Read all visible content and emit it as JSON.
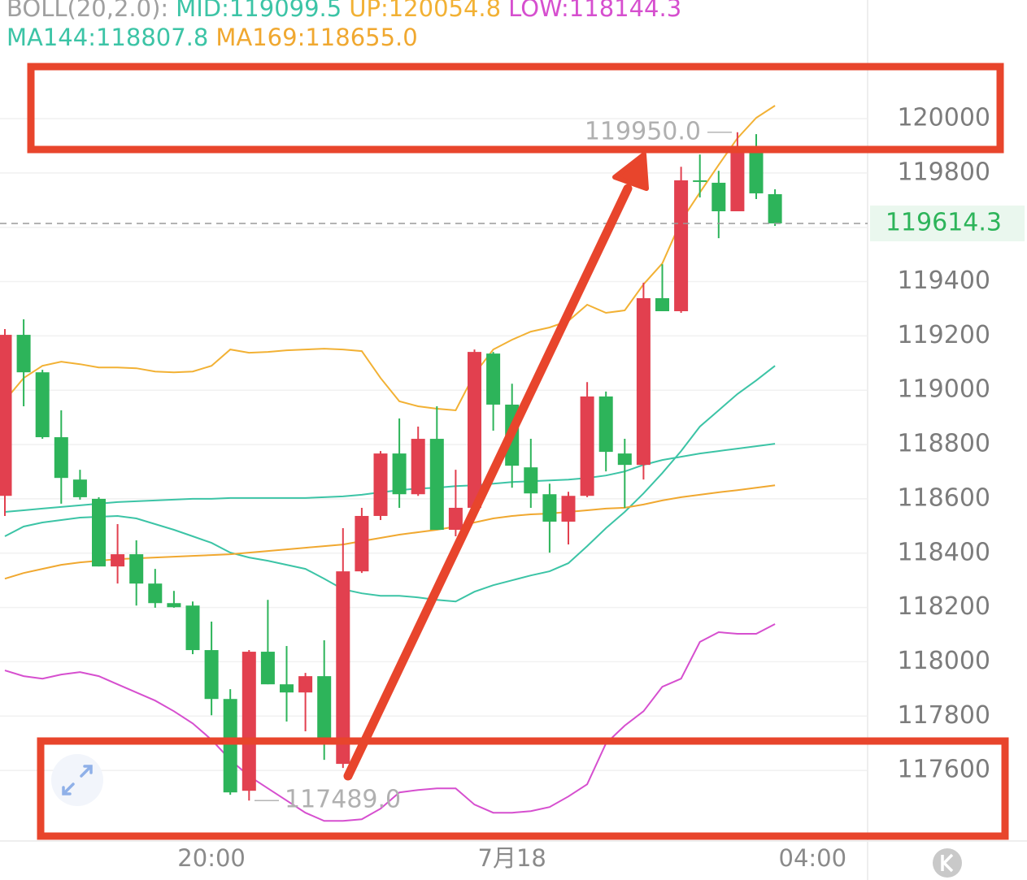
{
  "chart_data": {
    "type": "candlestick",
    "indicators": [
      [
        {
          "text": "BOLL(20,2.0):",
          "color": "#a0a0a0"
        },
        {
          "text": "MID:119099.5",
          "color": "#3cc4a6"
        },
        {
          "text": "UP:120054.8",
          "color": "#f2b134"
        },
        {
          "text": "LOW:118144.3",
          "color": "#d64fcf"
        }
      ],
      [
        {
          "text": "MA144:118807.8",
          "color": "#3cc4a6"
        },
        {
          "text": "MA169:118655.0",
          "color": "#f0a830"
        }
      ]
    ],
    "categories": [
      null,
      null,
      null,
      null,
      null,
      null,
      null,
      null,
      null,
      null,
      null,
      "20:00",
      null,
      null,
      null,
      null,
      null,
      null,
      null,
      null,
      null,
      null,
      null,
      null,
      null,
      null,
      null,
      "7月18",
      null,
      null,
      null,
      null,
      null,
      null,
      null,
      null,
      null,
      null,
      null,
      null,
      null,
      null,
      null,
      "04:00"
    ],
    "open": [
      118611,
      119204,
      119066,
      118827,
      118671,
      118600,
      118351,
      118396,
      118288,
      118216,
      118207,
      118043,
      117863,
      117525,
      118037,
      117917,
      117887,
      117947,
      117624,
      118333,
      118537,
      118767,
      118617,
      118821,
      118486,
      118567,
      119135,
      118947,
      118716,
      118617,
      118516,
      118611,
      118977,
      118767,
      118725,
      119339,
      119291,
      119773,
      119764,
      119659,
      119898,
      119722,
      null,
      null
    ],
    "high": [
      119225,
      119261,
      119075,
      118926,
      118707,
      118606,
      118507,
      118447,
      118342,
      118261,
      118222,
      118148,
      117899,
      118043,
      118228,
      118058,
      117959,
      118079,
      118492,
      118567,
      118776,
      118896,
      118866,
      118941,
      118707,
      119150,
      119141,
      119024,
      118821,
      118656,
      118626,
      119030,
      118995,
      118821,
      119396,
      119464,
      119823,
      119868,
      119808,
      119950,
      119943,
      119740,
      null,
      null
    ],
    "low": [
      118537,
      118941,
      118821,
      118582,
      118597,
      118351,
      118288,
      118207,
      118199,
      118199,
      118028,
      117803,
      117510,
      117489,
      117917,
      117780,
      117744,
      117639,
      117609,
      118327,
      118522,
      118567,
      118611,
      118486,
      118462,
      118558,
      118851,
      118641,
      118567,
      118402,
      118432,
      118606,
      118701,
      118567,
      118671,
      119291,
      119285,
      119710,
      119560,
      119659,
      119704,
      119605,
      null,
      null
    ],
    "close": [
      119204,
      119066,
      118827,
      118677,
      118606,
      118351,
      118396,
      118288,
      118216,
      118201,
      118043,
      117863,
      117519,
      118037,
      117917,
      117887,
      117947,
      117708,
      118333,
      118537,
      118767,
      118617,
      118821,
      118486,
      118567,
      119141,
      118947,
      118722,
      118620,
      118516,
      118611,
      118977,
      118773,
      118725,
      119339,
      119291,
      119773,
      119767,
      119659,
      119898,
      119725,
      119614.3,
      null,
      null
    ],
    "up_color": "#e2404f",
    "down_color": "#2db45a",
    "lines": [
      {
        "color": "#f2b134",
        "values": [
          118962,
          119045,
          119090,
          119105,
          119096,
          119084,
          119084,
          119081,
          119069,
          119066,
          119069,
          119090,
          119150,
          119138,
          119141,
          119147,
          119150,
          119153,
          119150,
          119144,
          119045,
          118959,
          118941,
          118932,
          118926,
          119060,
          119150,
          119186,
          119216,
          119231,
          119255,
          119315,
          119285,
          119294,
          119390,
          119467,
          119623,
          119728,
          119830,
          119928,
          120003,
          120048,
          null,
          null
        ]
      },
      {
        "color": "#3cc4a6",
        "values": [
          118462,
          118498,
          118513,
          118522,
          118531,
          118534,
          118537,
          118528,
          118507,
          118486,
          118462,
          118438,
          118402,
          118384,
          118372,
          118357,
          118342,
          118306,
          118267,
          118252,
          118243,
          118243,
          118237,
          118228,
          118222,
          118258,
          118282,
          118300,
          118318,
          118333,
          118363,
          118426,
          118492,
          118552,
          118620,
          118695,
          118776,
          118866,
          118926,
          118986,
          119036,
          119090,
          null,
          null
        ]
      },
      {
        "color": "#d64fcf",
        "values": [
          117968,
          117947,
          117938,
          117953,
          117962,
          117947,
          117917,
          117887,
          117857,
          117818,
          117773,
          117713,
          117639,
          117579,
          117534,
          117489,
          117444,
          117414,
          117414,
          117420,
          117459,
          117519,
          117528,
          117534,
          117534,
          117474,
          117444,
          117444,
          117450,
          117465,
          117504,
          117549,
          117699,
          117765,
          117818,
          117908,
          117938,
          118073,
          118109,
          118103,
          118103,
          118139,
          null,
          null
        ]
      },
      {
        "color": "#3cc4a6",
        "values": [
          118552,
          118558,
          118564,
          118570,
          118576,
          118582,
          118588,
          118591,
          118594,
          118597,
          118600,
          118600,
          118603,
          118603,
          118603,
          118603,
          118603,
          118606,
          118609,
          118615,
          118624,
          118632,
          118638,
          118641,
          118647,
          118650,
          118656,
          118662,
          118665,
          118668,
          118671,
          118677,
          118686,
          118701,
          118725,
          118743,
          118755,
          118767,
          118776,
          118785,
          118794,
          118803,
          null,
          null
        ]
      },
      {
        "color": "#f0a830",
        "values": [
          118306,
          118327,
          118342,
          118357,
          118366,
          118372,
          118378,
          118381,
          118384,
          118387,
          118390,
          118393,
          118396,
          118402,
          118408,
          118414,
          118420,
          118426,
          118432,
          118444,
          118456,
          118468,
          118477,
          118486,
          118498,
          118513,
          118528,
          118537,
          118543,
          118546,
          118552,
          118558,
          118564,
          118567,
          118579,
          118594,
          118606,
          118615,
          118624,
          118632,
          118641,
          118650,
          null,
          null
        ]
      }
    ],
    "ylim": [
      117340,
      120437
    ],
    "yticks": [
      117600,
      117800,
      118000,
      118200,
      118400,
      118600,
      118800,
      119000,
      119200,
      119400,
      119600,
      119800,
      120000
    ],
    "grid": true,
    "last_price": 119614.3,
    "extremes": [
      {
        "value": 119950,
        "label": "119950.0"
      },
      {
        "value": 117489,
        "label": "117489.0"
      }
    ]
  }
}
